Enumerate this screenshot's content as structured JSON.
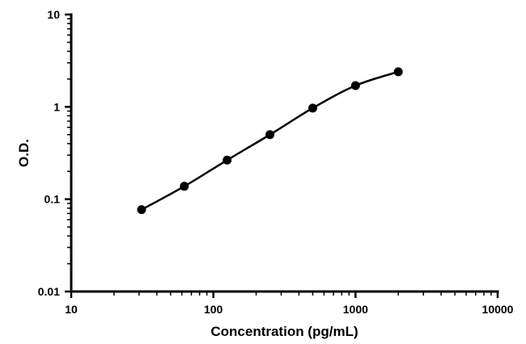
{
  "chart_data": {
    "type": "line",
    "title": "",
    "xlabel": "Concentration (pg/mL)",
    "ylabel": "O.D.",
    "xscale": "log",
    "yscale": "log",
    "xlim": [
      10,
      10000
    ],
    "ylim": [
      0.01,
      10
    ],
    "x_ticks": [
      10,
      100,
      1000,
      10000
    ],
    "x_tick_labels": [
      "10",
      "100",
      "1000",
      "10000"
    ],
    "y_ticks": [
      0.01,
      0.1,
      1,
      10
    ],
    "y_tick_labels": [
      "0.01",
      "0.1",
      "1",
      "10"
    ],
    "minor_ticks": true,
    "grid": false,
    "legend": "none",
    "series": [
      {
        "x": [
          31.25,
          62.5,
          125,
          250,
          500,
          1000,
          2000
        ],
        "y": [
          0.077,
          0.138,
          0.265,
          0.5,
          0.97,
          1.7,
          2.4
        ],
        "color": "#000000",
        "marker": "circle",
        "line": "smooth"
      }
    ]
  }
}
